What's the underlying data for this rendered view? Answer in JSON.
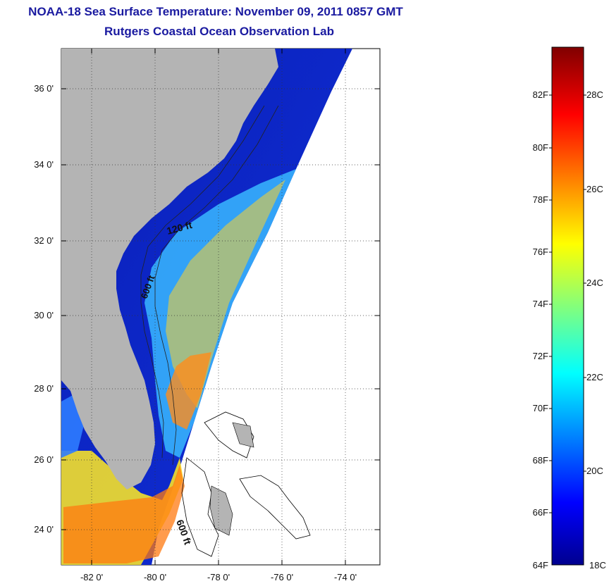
{
  "title": {
    "line1": "NOAA-18 Sea Surface Temperature:  November 09, 2011 0857 GMT",
    "line2": "Rutgers Coastal Ocean Observation Lab"
  },
  "map": {
    "lat_ticks": [
      "36 0'",
      "34 0'",
      "32 0'",
      "30 0'",
      "28 0'",
      "26 0'",
      "24 0'"
    ],
    "lon_ticks": [
      "-82 0'",
      "-80 0'",
      "-78 0'",
      "-76 0'",
      "-74 0'"
    ],
    "lat_range": [
      23,
      37
    ],
    "lon_range": [
      -83,
      -73
    ],
    "contour_labels": [
      "120 ft",
      "600 ft",
      "600 ft"
    ],
    "land_color": "#b4b4b4",
    "grid": "dotted"
  },
  "colorbar": {
    "fahrenheit_labels": [
      "82F",
      "80F",
      "78F",
      "76F",
      "74F",
      "72F",
      "70F",
      "68F",
      "66F",
      "64F"
    ],
    "celsius_labels": [
      "28C",
      "26C",
      "24C",
      "22C",
      "20C",
      "18C"
    ],
    "range_c": [
      18,
      29
    ],
    "colormap": "jet"
  }
}
